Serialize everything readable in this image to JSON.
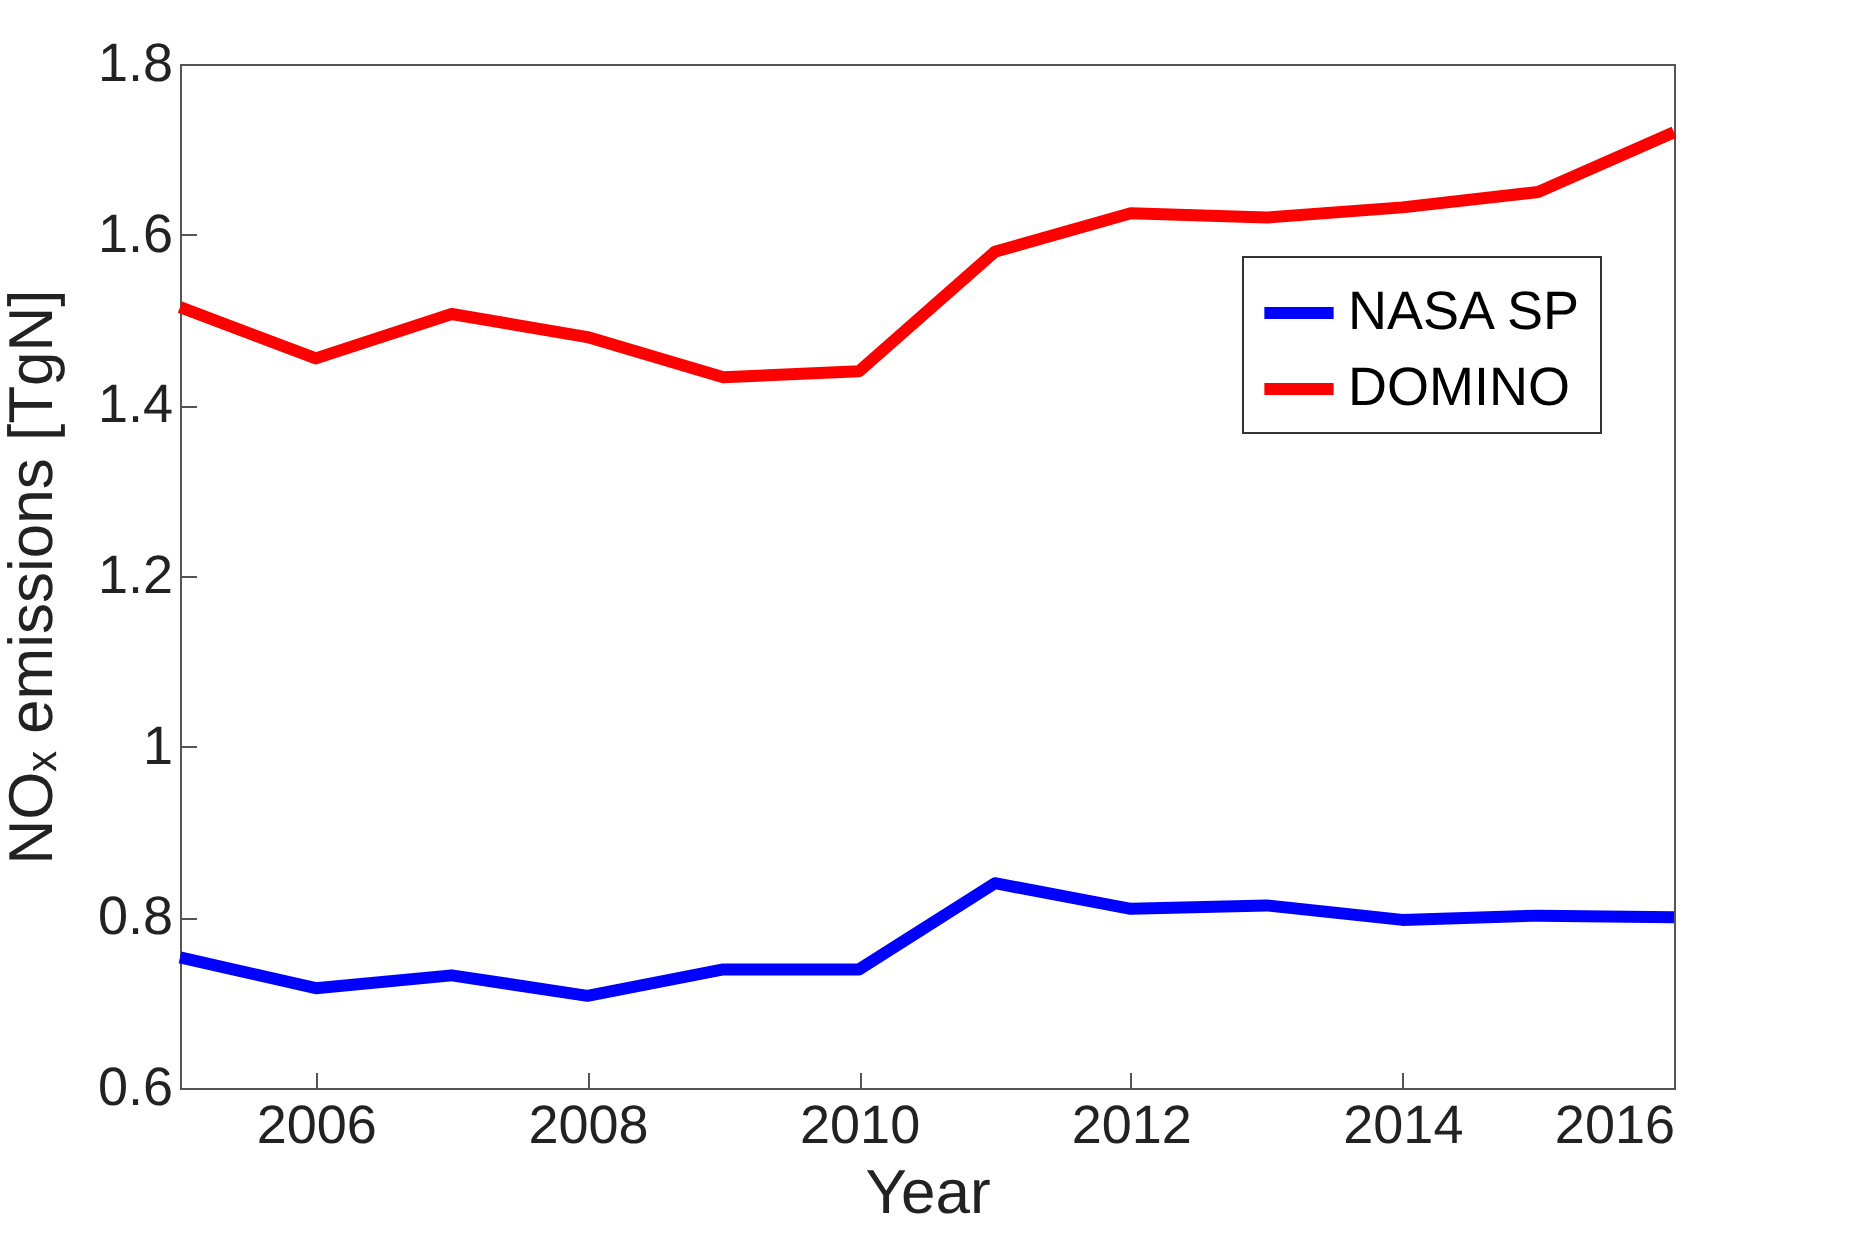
{
  "chart_data": {
    "type": "line",
    "xlabel": "Year",
    "ylabel": "NOₓ emissions [TgN]",
    "x": [
      2005,
      2006,
      2007,
      2008,
      2009,
      2010,
      2011,
      2012,
      2013,
      2014,
      2015,
      2016
    ],
    "series": [
      {
        "name": "NASA SP",
        "color": "#0000ff",
        "values": [
          0.753,
          0.717,
          0.732,
          0.708,
          0.739,
          0.739,
          0.84,
          0.81,
          0.814,
          0.797,
          0.802,
          0.8
        ]
      },
      {
        "name": "DOMINO",
        "color": "#ff0000",
        "values": [
          1.515,
          1.455,
          1.507,
          1.48,
          1.433,
          1.44,
          1.58,
          1.625,
          1.62,
          1.632,
          1.65,
          1.72
        ]
      }
    ],
    "xlim": [
      2005,
      2016
    ],
    "xticks": [
      2006,
      2008,
      2010,
      2012,
      2014,
      2016
    ],
    "ylim": [
      0.6,
      1.8
    ],
    "yticks": [
      0.6,
      0.8,
      1,
      1.2,
      1.4,
      1.6,
      1.8
    ],
    "legend": "top right",
    "grid": false,
    "line_style": "solid",
    "marker": "none"
  }
}
